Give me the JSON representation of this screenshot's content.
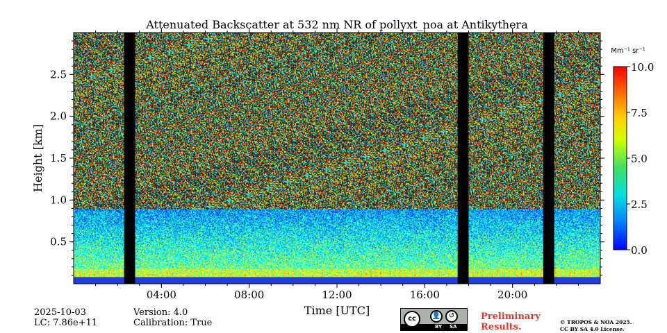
{
  "chart_data": {
    "type": "heatmap",
    "title": "Attenuated Backscatter at 532 nm NR of pollyxt_noa at Antikythera",
    "xlabel": "Time [UTC]",
    "ylabel": "Height [km]",
    "xlim_hours": [
      0,
      24
    ],
    "ylim_km": [
      0,
      3.0
    ],
    "x_ticks": [
      4,
      8,
      12,
      16,
      20
    ],
    "x_tick_labels": [
      "04:00",
      "08:00",
      "12:00",
      "16:00",
      "20:00"
    ],
    "y_ticks": [
      0.5,
      1.0,
      1.5,
      2.0,
      2.5
    ],
    "y_tick_labels": [
      "0.5",
      "1.0",
      "1.5",
      "2.0",
      "2.5"
    ],
    "colorbar": {
      "label": "Mm⁻¹ sr⁻¹",
      "range": [
        0,
        10
      ],
      "ticks": [
        0,
        2.5,
        5,
        7.5,
        10
      ],
      "tick_labels": [
        "0.0",
        "2.5",
        "5.0",
        "7.5",
        "10.0"
      ],
      "colormap": "jet"
    },
    "no_data_periods_hours": [
      [
        2.3,
        2.8
      ],
      [
        17.5,
        18.0
      ],
      [
        21.4,
        21.9
      ]
    ]
  },
  "footer": {
    "date": "2025-10-03",
    "lc": "LC: 7.86e+11",
    "version": "Version: 4.0",
    "calibration": "Calibration: True",
    "preliminary_line1": "Preliminary",
    "preliminary_line2": "Results.",
    "copyright_line1": "© TROPOS & NOA 2025.",
    "copyright_line2": "CC BY SA 4.0 License.",
    "license_badge": {
      "cc": "cc",
      "by": "BY",
      "sa": "SA"
    }
  }
}
